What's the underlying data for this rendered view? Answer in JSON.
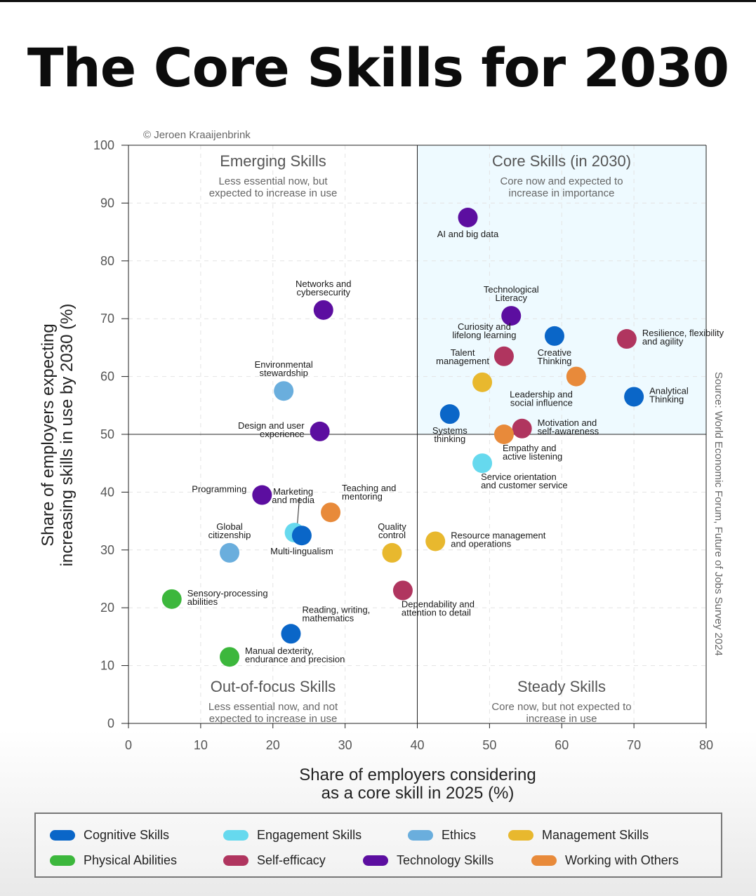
{
  "title": "The Core Skills for 2030",
  "copyright": "© Jeroen Kraaijenbrink",
  "source": "Source: World Economic Forum, Future of Jobs Survey 2024",
  "colors": {
    "cognitive": "#0a66c8",
    "engagement": "#66d9ee",
    "ethics": "#6aaedd",
    "management": "#e8b82e",
    "physical": "#3cb73c",
    "selfefficacy": "#b0355f",
    "technology": "#5c0ea0",
    "others": "#e88a3a"
  },
  "quadrants": {
    "emerging": {
      "title": "Emerging Skills",
      "sub1": "Less essential now, but",
      "sub2": "expected to increase in use"
    },
    "core": {
      "title": "Core Skills (in 2030)",
      "sub1": "Core now and expected to",
      "sub2": "increase in importance"
    },
    "outoffocus": {
      "title": "Out-of-focus Skills",
      "sub1": "Less essential now, and not",
      "sub2": "expected to increase in use"
    },
    "steady": {
      "title": "Steady Skills",
      "sub1": "Core now, but not expected to",
      "sub2": "increase in use"
    }
  },
  "legend": [
    {
      "label": "Cognitive Skills",
      "key": "cognitive"
    },
    {
      "label": "Engagement Skills",
      "key": "engagement"
    },
    {
      "label": "Ethics",
      "key": "ethics"
    },
    {
      "label": "Management Skills",
      "key": "management"
    },
    {
      "label": "Physical Abilities",
      "key": "physical"
    },
    {
      "label": "Self-efficacy",
      "key": "selfefficacy"
    },
    {
      "label": "Technology Skills",
      "key": "technology"
    },
    {
      "label": "Working with Others",
      "key": "others"
    }
  ],
  "chart_data": {
    "type": "scatter",
    "title": "The Core Skills for 2030",
    "xlabel": [
      "Share of employers considering",
      "as a core skill in 2025 (%)"
    ],
    "ylabel": [
      "Share of employers expecting",
      "increasing skills in use by 2030 (%)"
    ],
    "xlim": [
      0,
      80
    ],
    "ylim": [
      0,
      100
    ],
    "xticks": [
      0,
      10,
      20,
      30,
      40,
      50,
      60,
      70,
      80
    ],
    "yticks": [
      0,
      10,
      20,
      30,
      40,
      50,
      60,
      70,
      80,
      90,
      100
    ],
    "grid": true,
    "divider": {
      "x": 40,
      "y": 50
    },
    "points": [
      {
        "label": [
          "AI and big data"
        ],
        "x": 47,
        "y": 87.5,
        "cat": "technology",
        "anchor": "below"
      },
      {
        "label": [
          "Networks and",
          "cybersecurity"
        ],
        "x": 27,
        "y": 71.5,
        "cat": "technology",
        "anchor": "above"
      },
      {
        "label": [
          "Technological",
          "Literacy"
        ],
        "x": 53,
        "y": 70.5,
        "cat": "technology",
        "anchor": "above"
      },
      {
        "label": [
          "Curiosity and",
          "lifelong learning"
        ],
        "x": 52,
        "y": 63.5,
        "cat": "selfefficacy",
        "anchor": "upleft"
      },
      {
        "label": [
          "Creative",
          "Thinking"
        ],
        "x": 59,
        "y": 67,
        "cat": "cognitive",
        "anchor": "below"
      },
      {
        "label": [
          "Resilience, flexibility",
          "and agility"
        ],
        "x": 69,
        "y": 66.5,
        "cat": "selfefficacy",
        "anchor": "right"
      },
      {
        "label": [
          "Talent",
          "management"
        ],
        "x": 49,
        "y": 59,
        "cat": "management",
        "anchor": "upleft"
      },
      {
        "label": [
          "Leadership and",
          "social influence"
        ],
        "x": 62,
        "y": 60,
        "cat": "others",
        "anchor": "belowleft"
      },
      {
        "label": [
          "Analytical",
          "Thinking"
        ],
        "x": 70,
        "y": 56.5,
        "cat": "cognitive",
        "anchor": "right"
      },
      {
        "label": [
          "Environmental",
          "stewardship"
        ],
        "x": 21.5,
        "y": 57.5,
        "cat": "ethics",
        "anchor": "above"
      },
      {
        "label": [
          "Systems",
          "thinking"
        ],
        "x": 44.5,
        "y": 53.5,
        "cat": "cognitive",
        "anchor": "below"
      },
      {
        "label": [
          "Design and user",
          "experience"
        ],
        "x": 26.5,
        "y": 50.5,
        "cat": "technology",
        "anchor": "left"
      },
      {
        "label": [
          "Motivation and",
          "self-awareness"
        ],
        "x": 54.5,
        "y": 51,
        "cat": "selfefficacy",
        "anchor": "right"
      },
      {
        "label": [
          "Empathy and",
          "active listening"
        ],
        "x": 52,
        "y": 50,
        "cat": "others",
        "anchor": "belowright"
      },
      {
        "label": [
          "Service orientation",
          "and customer service"
        ],
        "x": 49,
        "y": 45,
        "cat": "engagement",
        "anchor": "belowright"
      },
      {
        "label": [
          "Marketing",
          "and media"
        ],
        "x": 23,
        "y": 33,
        "cat": "engagement",
        "anchor": "leader"
      },
      {
        "label": [
          "Teaching and",
          "mentoring"
        ],
        "x": 28,
        "y": 36.5,
        "cat": "others",
        "anchor": "upright"
      },
      {
        "label": [
          "Programming"
        ],
        "x": 18.5,
        "y": 39.5,
        "cat": "technology",
        "anchor": "left"
      },
      {
        "label": [
          "Global",
          "citizenship"
        ],
        "x": 14,
        "y": 29.5,
        "cat": "ethics",
        "anchor": "above"
      },
      {
        "label": [
          "Multi-lingualism"
        ],
        "x": 24,
        "y": 32.5,
        "cat": "cognitive",
        "anchor": "belowbig"
      },
      {
        "label": [
          "Quality",
          "control"
        ],
        "x": 36.5,
        "y": 29.5,
        "cat": "management",
        "anchor": "above"
      },
      {
        "label": [
          "Resource management",
          "and operations"
        ],
        "x": 42.5,
        "y": 31.5,
        "cat": "management",
        "anchor": "right"
      },
      {
        "label": [
          "Dependability and",
          "attention to detail"
        ],
        "x": 38,
        "y": 23,
        "cat": "selfefficacy",
        "anchor": "belowright"
      },
      {
        "label": [
          "Sensory-processing",
          "abilities"
        ],
        "x": 6,
        "y": 21.5,
        "cat": "physical",
        "anchor": "right"
      },
      {
        "label": [
          "Reading, writing,",
          "mathematics"
        ],
        "x": 22.5,
        "y": 15.5,
        "cat": "cognitive",
        "anchor": "upright"
      },
      {
        "label": [
          "Manual dexterity,",
          "endurance and precision"
        ],
        "x": 14,
        "y": 11.5,
        "cat": "physical",
        "anchor": "right"
      }
    ]
  }
}
